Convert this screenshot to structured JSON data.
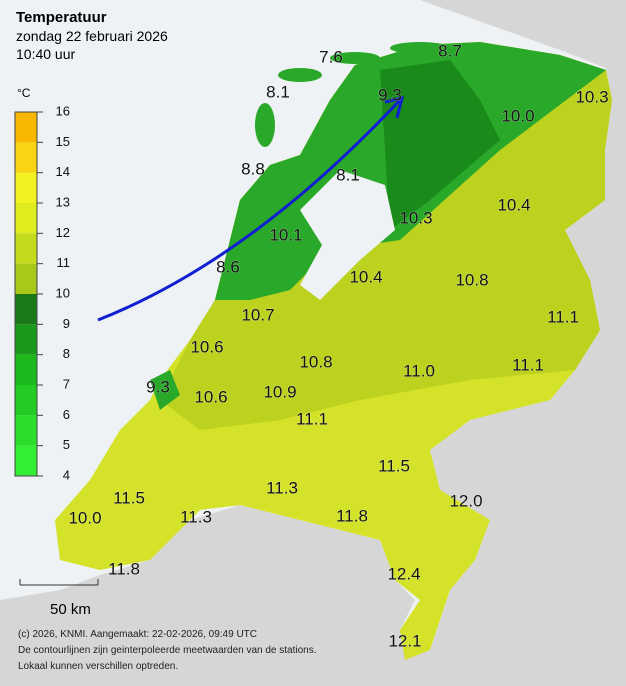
{
  "header": {
    "title": "Temperatuur",
    "date": "zondag 22 februari 2026",
    "time": "10:40 uur"
  },
  "legend": {
    "unit": "°C",
    "ticks": [
      4,
      5,
      6,
      7,
      8,
      9,
      10,
      11,
      12,
      13,
      14,
      15,
      16
    ],
    "colors": [
      "#33ee33",
      "#2cdd2c",
      "#22cc22",
      "#1cb81c",
      "#1a9a1a",
      "#1a7a1a",
      "#a8c81a",
      "#c4da1c",
      "#dfec1e",
      "#f2f222",
      "#f8d414",
      "#f8b800"
    ]
  },
  "stations": [
    "7.6",
    "8.7",
    "8.1",
    "9.3",
    "10.3",
    "10.0",
    "8.8",
    "8.1",
    "10.3",
    "10.4",
    "10.1",
    "8.6",
    "10.4",
    "10.8",
    "10.7",
    "11.1",
    "10.6",
    "10.8",
    "11.1",
    "11.0",
    "9.3",
    "10.6",
    "10.9",
    "11.1",
    "11.5",
    "11.5",
    "11.3",
    "12.0",
    "10.0",
    "11.3",
    "11.8",
    "11.8",
    "12.4",
    "12.1"
  ],
  "scale": {
    "label": "50 km"
  },
  "footer": [
    "(c) 2026, KNMI. Aangemaakt: 22-02-2026, 09:49 UTC",
    "De contourlijnen zijn geinterpoleerde meetwaarden van de stations.",
    "Lokaal kunnen verschillen optreden."
  ]
}
